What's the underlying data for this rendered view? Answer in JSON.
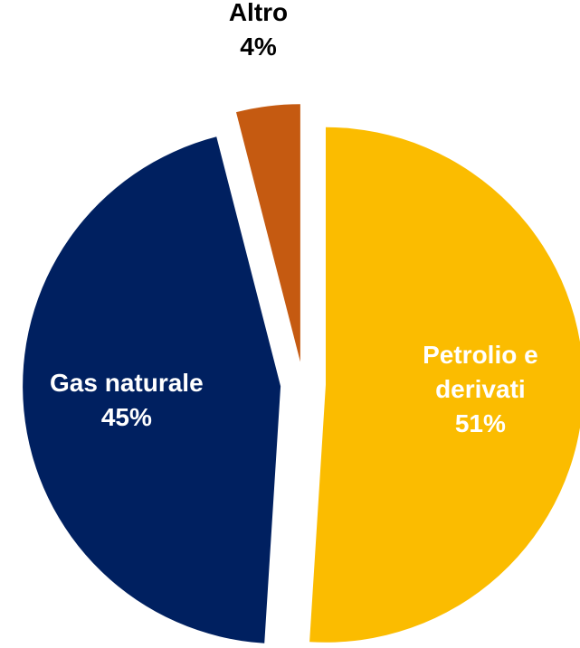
{
  "chart_data": {
    "type": "pie",
    "categories": [
      "Petrolio e derivati",
      "Gas naturale",
      "Altro"
    ],
    "values": [
      51,
      45,
      4
    ],
    "value_labels": [
      "51%",
      "45%",
      "4%"
    ],
    "colors": [
      "#fbbc00",
      "#002060",
      "#c55a11"
    ]
  }
}
